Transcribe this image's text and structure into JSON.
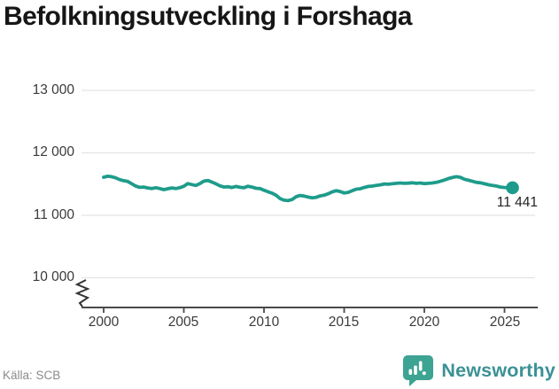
{
  "header": {
    "title": "Befolkningsutveckling i Forshaga"
  },
  "footer": {
    "source": "Källa: SCB",
    "brand": "Newsworthy",
    "logo_icon": "bar-chart-speech-bubble-icon"
  },
  "colors": {
    "line": "#1e9c8b",
    "grid": "#e3e3e3",
    "axis": "#4a4a4a",
    "tick_label": "#3a3a3a",
    "title": "#161616",
    "end_label": "#222222",
    "source": "#8b8b8b",
    "brand_text": "#3b9195",
    "brand_icon": "#3da393",
    "brand_icon_glyph": "#ffffff"
  },
  "chart_data": {
    "type": "line",
    "title": "Befolkningsutveckling i Forshaga",
    "xlabel": "",
    "ylabel": "",
    "grid": "horizontal",
    "legend": "none",
    "axis_break_below": 10000,
    "x_ticks": [
      2000,
      2005,
      2010,
      2015,
      2020,
      2025
    ],
    "x_tick_labels": [
      "2000",
      "2005",
      "2010",
      "2015",
      "2020",
      "2025"
    ],
    "y_ticks": [
      13000,
      12000,
      11000,
      10000
    ],
    "y_tick_labels": [
      "13 000",
      "12 000",
      "11 000",
      "10 000"
    ],
    "ylim": [
      10000,
      13000
    ],
    "xlim": [
      1998.6,
      2027.5
    ],
    "end_label": "11 441",
    "last_value": 11441,
    "series": [
      {
        "name": "Befolkning",
        "points": [
          [
            2000,
            11610
          ],
          [
            2000.25,
            11625
          ],
          [
            2000.5,
            11618
          ],
          [
            2000.75,
            11600
          ],
          [
            2001,
            11572
          ],
          [
            2001.25,
            11555
          ],
          [
            2001.5,
            11542
          ],
          [
            2001.75,
            11505
          ],
          [
            2002,
            11468
          ],
          [
            2002.25,
            11448
          ],
          [
            2002.5,
            11452
          ],
          [
            2002.75,
            11438
          ],
          [
            2003,
            11428
          ],
          [
            2003.25,
            11442
          ],
          [
            2003.5,
            11428
          ],
          [
            2003.75,
            11412
          ],
          [
            2004,
            11425
          ],
          [
            2004.25,
            11438
          ],
          [
            2004.5,
            11428
          ],
          [
            2004.75,
            11442
          ],
          [
            2005,
            11465
          ],
          [
            2005.25,
            11508
          ],
          [
            2005.5,
            11492
          ],
          [
            2005.75,
            11478
          ],
          [
            2006,
            11508
          ],
          [
            2006.25,
            11548
          ],
          [
            2006.5,
            11558
          ],
          [
            2006.75,
            11532
          ],
          [
            2007,
            11505
          ],
          [
            2007.25,
            11472
          ],
          [
            2007.5,
            11452
          ],
          [
            2007.75,
            11458
          ],
          [
            2008,
            11445
          ],
          [
            2008.25,
            11462
          ],
          [
            2008.5,
            11448
          ],
          [
            2008.75,
            11442
          ],
          [
            2009,
            11465
          ],
          [
            2009.25,
            11452
          ],
          [
            2009.5,
            11432
          ],
          [
            2009.75,
            11428
          ],
          [
            2010,
            11402
          ],
          [
            2010.25,
            11378
          ],
          [
            2010.5,
            11355
          ],
          [
            2010.75,
            11322
          ],
          [
            2011,
            11268
          ],
          [
            2011.25,
            11242
          ],
          [
            2011.5,
            11235
          ],
          [
            2011.75,
            11252
          ],
          [
            2012,
            11298
          ],
          [
            2012.25,
            11318
          ],
          [
            2012.5,
            11308
          ],
          [
            2012.75,
            11292
          ],
          [
            2013,
            11280
          ],
          [
            2013.25,
            11288
          ],
          [
            2013.5,
            11310
          ],
          [
            2013.75,
            11322
          ],
          [
            2014,
            11345
          ],
          [
            2014.25,
            11375
          ],
          [
            2014.5,
            11395
          ],
          [
            2014.75,
            11382
          ],
          [
            2015,
            11358
          ],
          [
            2015.25,
            11368
          ],
          [
            2015.5,
            11395
          ],
          [
            2015.75,
            11418
          ],
          [
            2016,
            11425
          ],
          [
            2016.25,
            11445
          ],
          [
            2016.5,
            11462
          ],
          [
            2016.75,
            11468
          ],
          [
            2017,
            11478
          ],
          [
            2017.25,
            11488
          ],
          [
            2017.5,
            11502
          ],
          [
            2017.75,
            11498
          ],
          [
            2018,
            11505
          ],
          [
            2018.25,
            11512
          ],
          [
            2018.5,
            11518
          ],
          [
            2018.75,
            11512
          ],
          [
            2019,
            11515
          ],
          [
            2019.25,
            11520
          ],
          [
            2019.5,
            11512
          ],
          [
            2019.75,
            11518
          ],
          [
            2020,
            11508
          ],
          [
            2020.25,
            11512
          ],
          [
            2020.5,
            11518
          ],
          [
            2020.75,
            11528
          ],
          [
            2021,
            11545
          ],
          [
            2021.25,
            11565
          ],
          [
            2021.5,
            11588
          ],
          [
            2021.75,
            11605
          ],
          [
            2022,
            11618
          ],
          [
            2022.25,
            11608
          ],
          [
            2022.5,
            11578
          ],
          [
            2022.75,
            11562
          ],
          [
            2023,
            11545
          ],
          [
            2023.25,
            11528
          ],
          [
            2023.5,
            11520
          ],
          [
            2023.75,
            11505
          ],
          [
            2024,
            11490
          ],
          [
            2024.25,
            11478
          ],
          [
            2024.5,
            11468
          ],
          [
            2024.75,
            11452
          ],
          [
            2025,
            11446
          ],
          [
            2025.5,
            11441
          ]
        ]
      }
    ]
  }
}
